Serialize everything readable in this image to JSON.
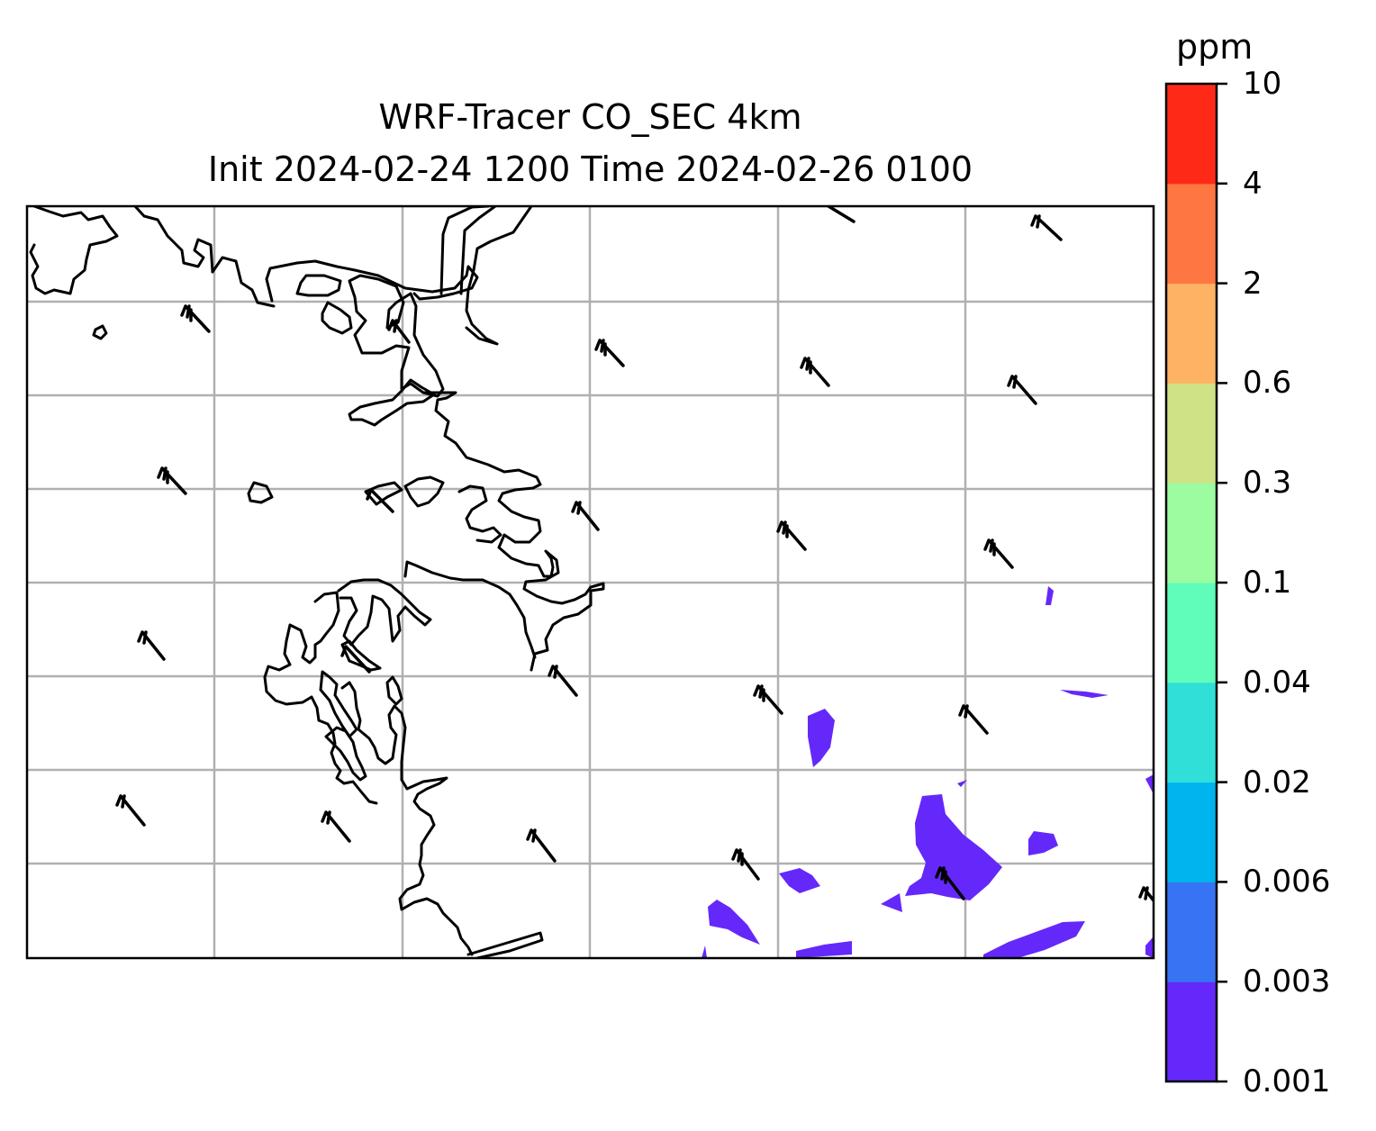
{
  "title_line1": "WRF-Tracer CO_SEC 4km",
  "title_line2": "Init 2024-02-24 1200 Time 2024-02-26 0100",
  "colorbar": {
    "unit": "ppm",
    "levels": [
      "0.001",
      "0.003",
      "0.006",
      "0.02",
      "0.04",
      "0.1",
      "0.3",
      "0.6",
      "2",
      "4",
      "10"
    ],
    "colors": [
      "#6528fa",
      "#3774f3",
      "#00b4ee",
      "#30e0d8",
      "#5ffcba",
      "#9cfca0",
      "#cfe386",
      "#fdb264",
      "#fe7641",
      "#fe2a17"
    ]
  },
  "map": {
    "gridlines": true,
    "grid_color": "#b0b0b0",
    "coastline_color": "#000000",
    "tracer_fill_color": "#6528fa",
    "overlay": "wind-barbs"
  }
}
